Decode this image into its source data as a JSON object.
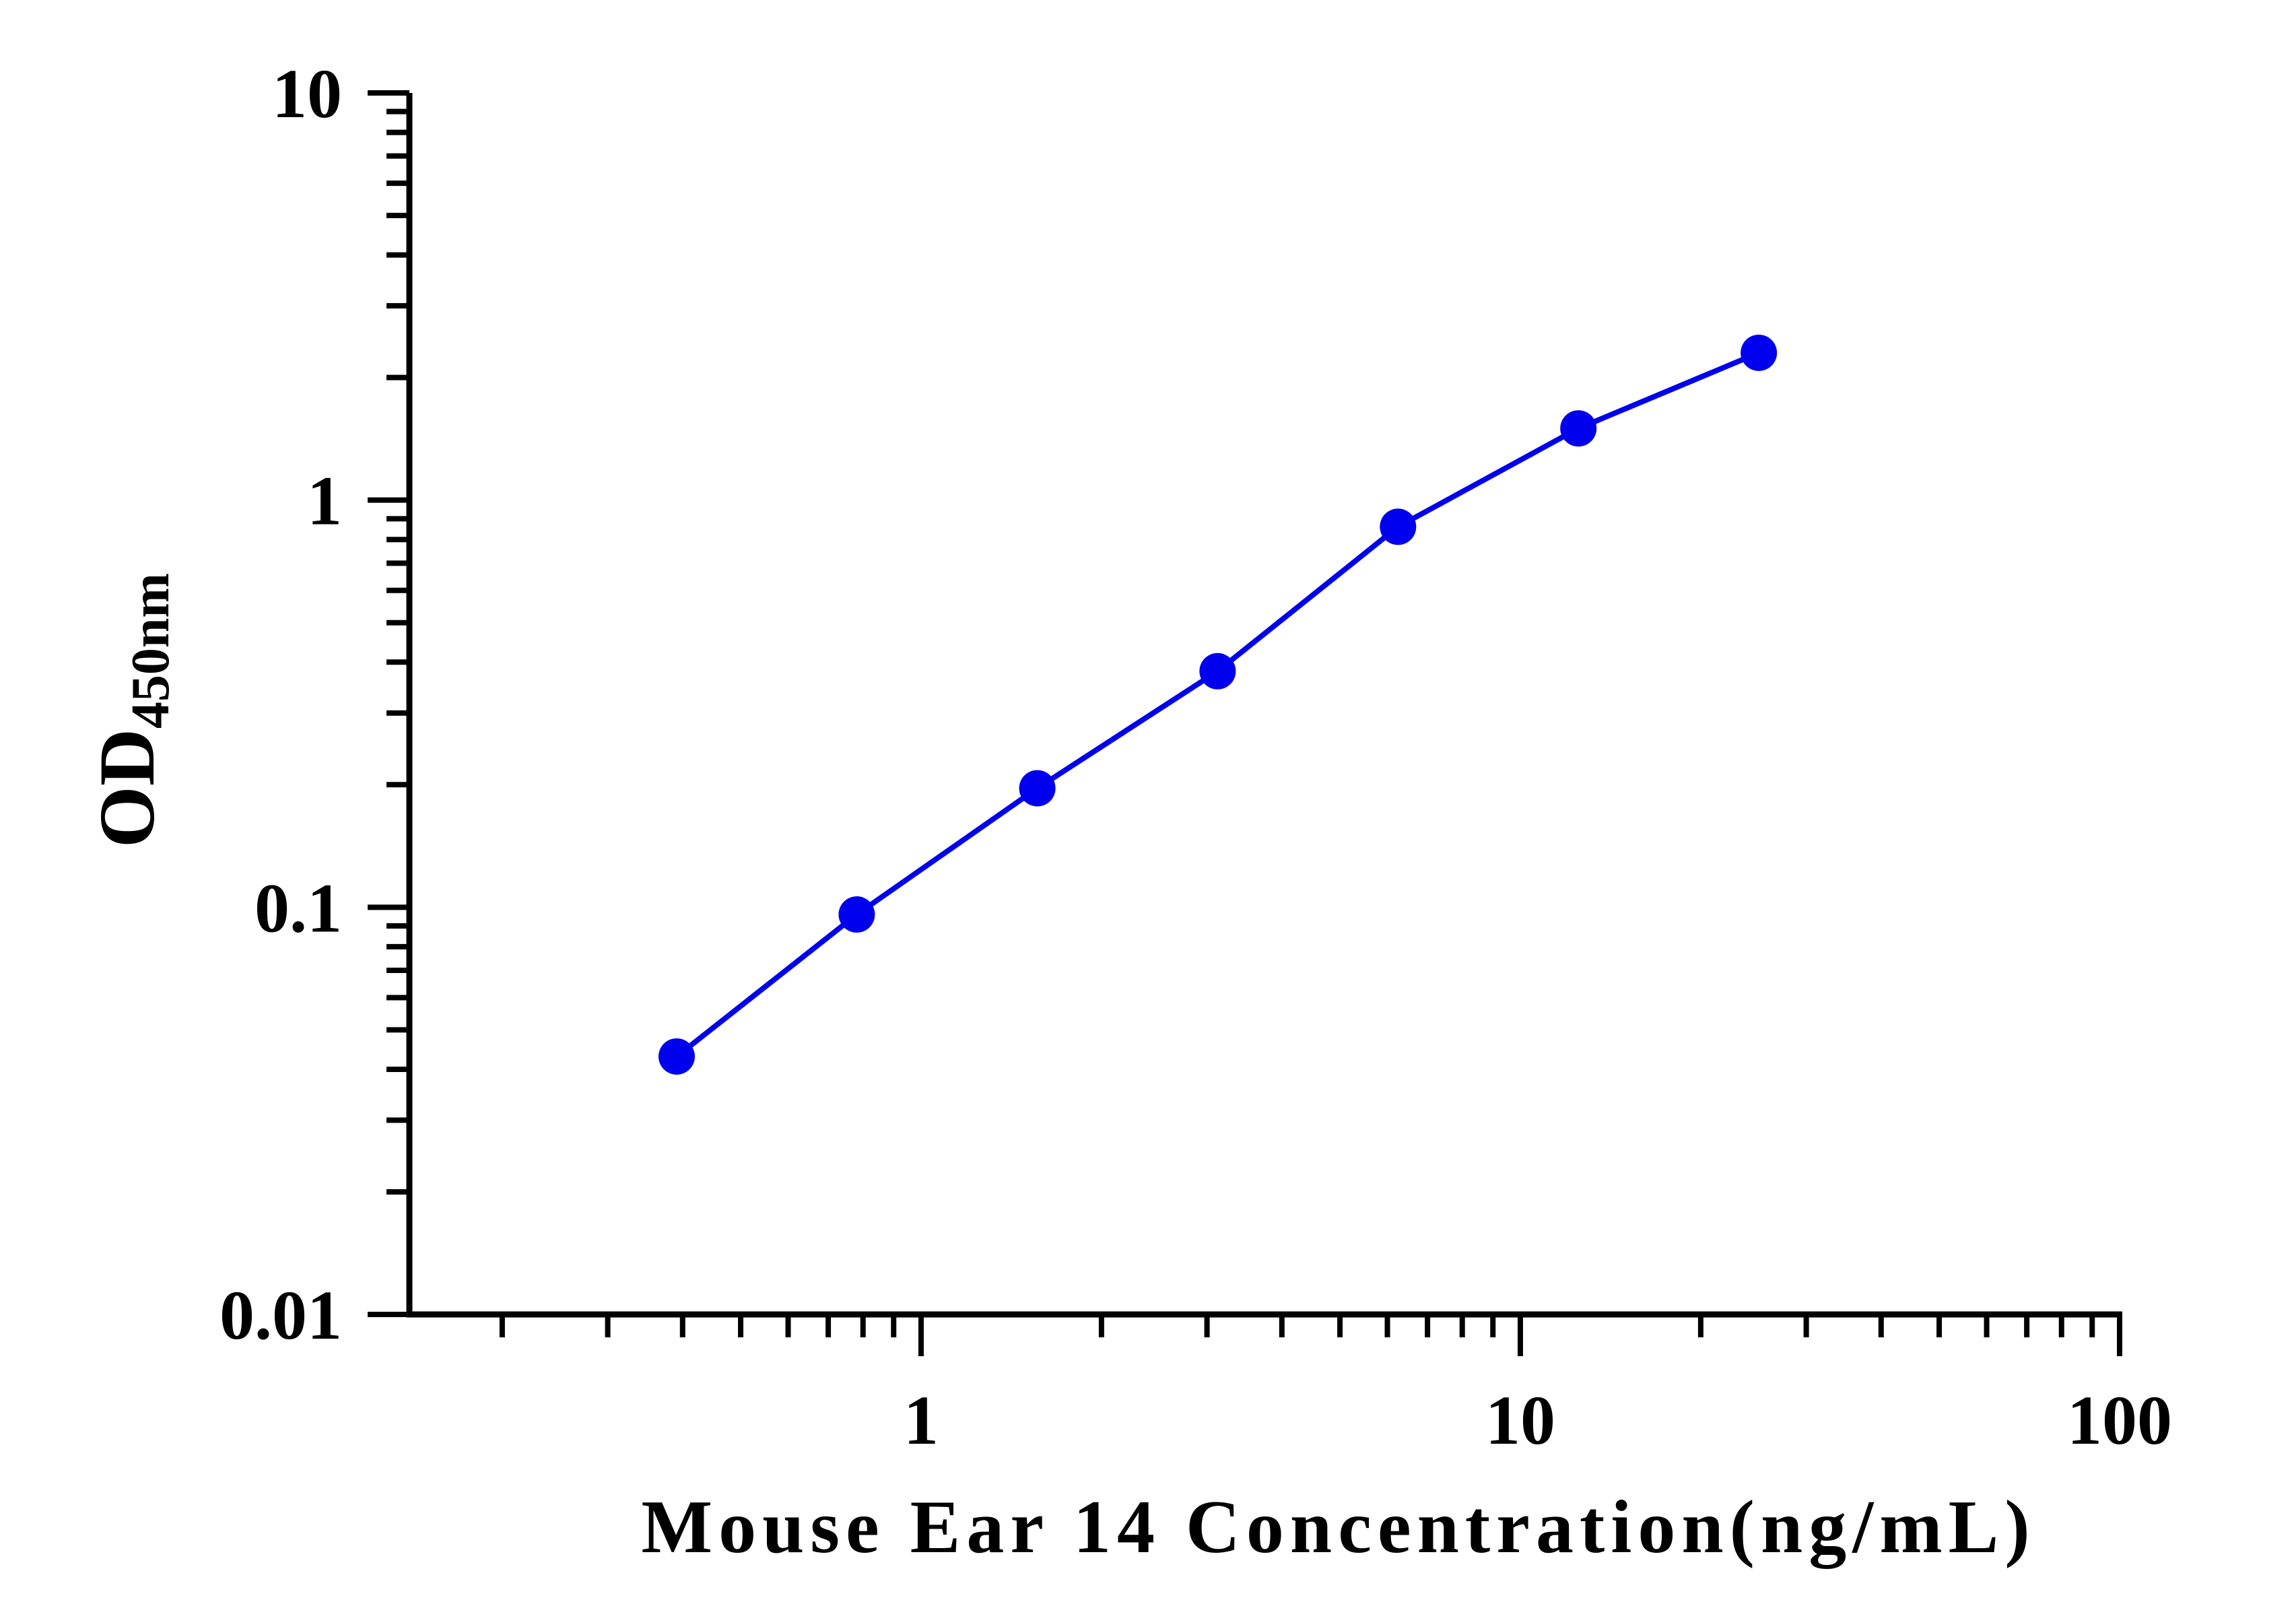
{
  "chart_data": {
    "type": "line",
    "xlabel": "Mouse Ear 14 Concentration(ng/mL)",
    "ylabel": {
      "main": "OD",
      "subscript": "450nm"
    },
    "x_scale": "log",
    "y_scale": "log",
    "xlim": [
      0.14,
      100
    ],
    "ylim": [
      0.01,
      10
    ],
    "x_tick_labels": [
      {
        "value": 1,
        "label": "1"
      },
      {
        "value": 10,
        "label": "10"
      },
      {
        "value": 100,
        "label": "100"
      }
    ],
    "y_tick_labels": [
      {
        "value": 0.01,
        "label": "0.01"
      },
      {
        "value": 0.1,
        "label": "0.1"
      },
      {
        "value": 1,
        "label": "1"
      },
      {
        "value": 10,
        "label": "10"
      }
    ],
    "grid": false,
    "series": [
      {
        "color": "#0000ee",
        "marker": "circle",
        "x": [
          0.391,
          0.781,
          1.563,
          3.125,
          6.25,
          12.5,
          25
        ],
        "y": [
          0.043,
          0.096,
          0.196,
          0.38,
          0.86,
          1.5,
          2.3
        ]
      }
    ]
  }
}
